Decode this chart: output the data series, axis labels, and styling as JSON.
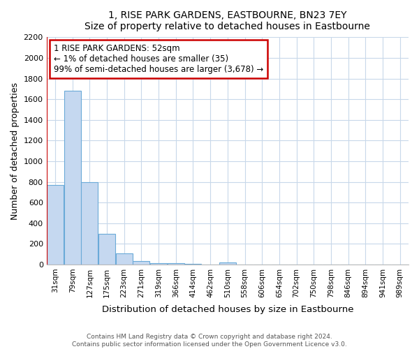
{
  "title": "1, RISE PARK GARDENS, EASTBOURNE, BN23 7EY",
  "subtitle": "Size of property relative to detached houses in Eastbourne",
  "xlabel": "Distribution of detached houses by size in Eastbourne",
  "ylabel": "Number of detached properties",
  "bar_labels": [
    "31sqm",
    "79sqm",
    "127sqm",
    "175sqm",
    "223sqm",
    "271sqm",
    "319sqm",
    "366sqm",
    "414sqm",
    "462sqm",
    "510sqm",
    "558sqm",
    "606sqm",
    "654sqm",
    "702sqm",
    "750sqm",
    "798sqm",
    "846sqm",
    "894sqm",
    "941sqm",
    "989sqm"
  ],
  "bar_values": [
    770,
    1685,
    795,
    295,
    110,
    35,
    15,
    10,
    5,
    0,
    20,
    0,
    0,
    0,
    0,
    0,
    0,
    0,
    0,
    0,
    0
  ],
  "bar_color": "#c5d8f0",
  "bar_edgecolor": "#6aaad8",
  "property_line_color": "#cc0000",
  "annotation_text": "1 RISE PARK GARDENS: 52sqm\n← 1% of detached houses are smaller (35)\n99% of semi-detached houses are larger (3,678) →",
  "annotation_box_color": "#cc0000",
  "ylim": [
    0,
    2200
  ],
  "yticks": [
    0,
    200,
    400,
    600,
    800,
    1000,
    1200,
    1400,
    1600,
    1800,
    2000,
    2200
  ],
  "footer1": "Contains HM Land Registry data © Crown copyright and database right 2024.",
  "footer2": "Contains public sector information licensed under the Open Government Licence v3.0.",
  "bg_color": "#ffffff",
  "grid_color": "#c8d8ea"
}
